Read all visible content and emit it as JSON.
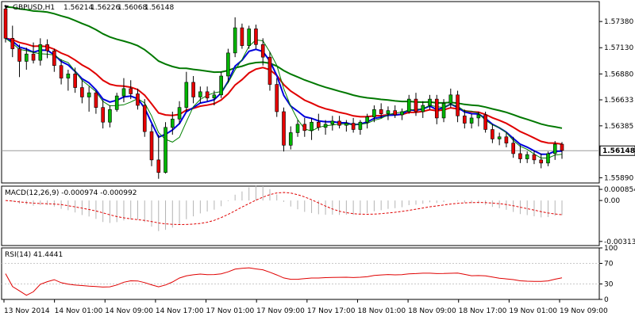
{
  "chart_data": [
    {
      "type": "candlestick",
      "header": {
        "symbol": "GBPUSD,H1",
        "open": "1.56214",
        "high": "1.56226",
        "low": "1.56068",
        "close": "1.56148"
      },
      "y_ticks": [
        "1.57380",
        "1.57130",
        "1.56880",
        "1.56633",
        "1.56385",
        "1.55890"
      ],
      "last_price_label": "1.56148",
      "ylim": [
        1.5584,
        1.5757
      ],
      "last_price": 1.56148,
      "candles": [
        [
          1.575,
          1.5754,
          1.5718,
          1.5722
        ],
        [
          1.5722,
          1.5734,
          1.5704,
          1.5712
        ],
        [
          1.5712,
          1.5716,
          1.5685,
          1.57
        ],
        [
          1.57,
          1.5713,
          1.5692,
          1.5707
        ],
        [
          1.5707,
          1.5718,
          1.5698,
          1.5701
        ],
        [
          1.5701,
          1.5722,
          1.5696,
          1.5716
        ],
        [
          1.5716,
          1.5721,
          1.5703,
          1.571
        ],
        [
          1.571,
          1.5712,
          1.569,
          1.5696
        ],
        [
          1.5696,
          1.5702,
          1.5678,
          1.5684
        ],
        [
          1.5684,
          1.5692,
          1.5672,
          1.5688
        ],
        [
          1.5688,
          1.5694,
          1.567,
          1.5675
        ],
        [
          1.5675,
          1.5682,
          1.566,
          1.5666
        ],
        [
          1.5666,
          1.5676,
          1.5652,
          1.567
        ],
        [
          1.567,
          1.5672,
          1.565,
          1.5656
        ],
        [
          1.5656,
          1.5663,
          1.5636,
          1.5642
        ],
        [
          1.5642,
          1.5658,
          1.5637,
          1.5654
        ],
        [
          1.5654,
          1.567,
          1.5652,
          1.5667
        ],
        [
          1.5667,
          1.5684,
          1.5661,
          1.5674
        ],
        [
          1.5674,
          1.5682,
          1.5664,
          1.5669
        ],
        [
          1.5669,
          1.5674,
          1.5654,
          1.5658
        ],
        [
          1.5658,
          1.5664,
          1.5628,
          1.5633
        ],
        [
          1.5633,
          1.564,
          1.56,
          1.5606
        ],
        [
          1.5606,
          1.563,
          1.5588,
          1.5594
        ],
        [
          1.5594,
          1.5642,
          1.5593,
          1.5637
        ],
        [
          1.5637,
          1.5652,
          1.563,
          1.5645
        ],
        [
          1.5645,
          1.5662,
          1.564,
          1.5656
        ],
        [
          1.5656,
          1.569,
          1.5652,
          1.568
        ],
        [
          1.568,
          1.5686,
          1.566,
          1.5666
        ],
        [
          1.5666,
          1.5676,
          1.566,
          1.5671
        ],
        [
          1.5671,
          1.5676,
          1.5662,
          1.5665
        ],
        [
          1.5665,
          1.5672,
          1.5658,
          1.5668
        ],
        [
          1.5668,
          1.569,
          1.5665,
          1.5686
        ],
        [
          1.5686,
          1.5712,
          1.568,
          1.5708
        ],
        [
          1.5708,
          1.5742,
          1.5704,
          1.5732
        ],
        [
          1.5732,
          1.5736,
          1.5712,
          1.5715
        ],
        [
          1.5715,
          1.5734,
          1.5712,
          1.5731
        ],
        [
          1.5731,
          1.5735,
          1.5712,
          1.5716
        ],
        [
          1.5716,
          1.5722,
          1.5696,
          1.5704
        ],
        [
          1.5704,
          1.5709,
          1.5672,
          1.5678
        ],
        [
          1.5678,
          1.5684,
          1.5647,
          1.5652
        ],
        [
          1.5652,
          1.5656,
          1.5614,
          1.562
        ],
        [
          1.562,
          1.5638,
          1.5616,
          1.5632
        ],
        [
          1.5632,
          1.5644,
          1.5628,
          1.564
        ],
        [
          1.564,
          1.5646,
          1.5628,
          1.5634
        ],
        [
          1.5634,
          1.5646,
          1.5625,
          1.5642
        ],
        [
          1.5642,
          1.565,
          1.5634,
          1.5637
        ],
        [
          1.5637,
          1.5644,
          1.563,
          1.564
        ],
        [
          1.564,
          1.5648,
          1.5634,
          1.5643
        ],
        [
          1.5643,
          1.5648,
          1.5636,
          1.5639
        ],
        [
          1.5639,
          1.5644,
          1.5633,
          1.5641
        ],
        [
          1.5641,
          1.5646,
          1.5632,
          1.5635
        ],
        [
          1.5635,
          1.5644,
          1.563,
          1.5642
        ],
        [
          1.5642,
          1.565,
          1.5636,
          1.5647
        ],
        [
          1.5647,
          1.5658,
          1.5642,
          1.5654
        ],
        [
          1.5654,
          1.566,
          1.5646,
          1.565
        ],
        [
          1.565,
          1.5657,
          1.5644,
          1.5653
        ],
        [
          1.5653,
          1.5658,
          1.5646,
          1.5649
        ],
        [
          1.5649,
          1.5655,
          1.5644,
          1.5652
        ],
        [
          1.5652,
          1.5668,
          1.565,
          1.5664
        ],
        [
          1.5664,
          1.567,
          1.5648,
          1.5652
        ],
        [
          1.5652,
          1.5662,
          1.5646,
          1.5658
        ],
        [
          1.5658,
          1.5668,
          1.5654,
          1.5664
        ],
        [
          1.5664,
          1.5668,
          1.564,
          1.5646
        ],
        [
          1.5646,
          1.5664,
          1.5642,
          1.566
        ],
        [
          1.566,
          1.5674,
          1.5656,
          1.5668
        ],
        [
          1.5668,
          1.5672,
          1.5642,
          1.5648
        ],
        [
          1.5648,
          1.5654,
          1.5636,
          1.5641
        ],
        [
          1.5641,
          1.565,
          1.5636,
          1.5646
        ],
        [
          1.5646,
          1.5652,
          1.5638,
          1.5649
        ],
        [
          1.5649,
          1.5652,
          1.5632,
          1.5635
        ],
        [
          1.5635,
          1.564,
          1.5622,
          1.5626
        ],
        [
          1.5626,
          1.5632,
          1.562,
          1.5628
        ],
        [
          1.5628,
          1.5632,
          1.5618,
          1.5622
        ],
        [
          1.5622,
          1.5628,
          1.5608,
          1.5612
        ],
        [
          1.5612,
          1.562,
          1.5603,
          1.5607
        ],
        [
          1.5607,
          1.5614,
          1.5603,
          1.5611
        ],
        [
          1.5611,
          1.5615,
          1.5602,
          1.5606
        ],
        [
          1.5606,
          1.5612,
          1.5598,
          1.5603
        ],
        [
          1.5603,
          1.5614,
          1.56,
          1.5612
        ],
        [
          1.5612,
          1.5624,
          1.5606,
          1.5621
        ],
        [
          1.5621,
          1.5623,
          1.5607,
          1.5615
        ]
      ]
    },
    {
      "type": "macd",
      "label": "MACD(12,26,9) -0.000974 -0.000992",
      "y_ticks": [
        "0.000854",
        "0.00",
        "-0.003135"
      ],
      "ylim": [
        -0.00345,
        0.0011
      ]
    },
    {
      "type": "rsi",
      "label": "RSI(14) 41.4441",
      "y_ticks": [
        "100",
        "70",
        "30",
        "0"
      ],
      "ylim": [
        0,
        100
      ]
    }
  ],
  "time_axis": {
    "labels": [
      "13 Nov 2014",
      "14 Nov 01:00",
      "14 Nov 09:00",
      "14 Nov 17:00",
      "17 Nov 01:00",
      "17 Nov 09:00",
      "17 Nov 17:00",
      "18 Nov 01:00",
      "18 Nov 09:00",
      "18 Nov 17:00",
      "19 Nov 01:00",
      "19 Nov 09:00"
    ]
  },
  "colors": {
    "up_fill": "#00b400",
    "down_fill": "#e60000",
    "ma_fast": "#0000dd",
    "ma_mid": "#e00000",
    "ma_slow": "#007800",
    "ma_thin": "#008000",
    "histogram": "#b4b4b4",
    "macd_signal": "#e00000",
    "rsi_line": "#e00000"
  }
}
